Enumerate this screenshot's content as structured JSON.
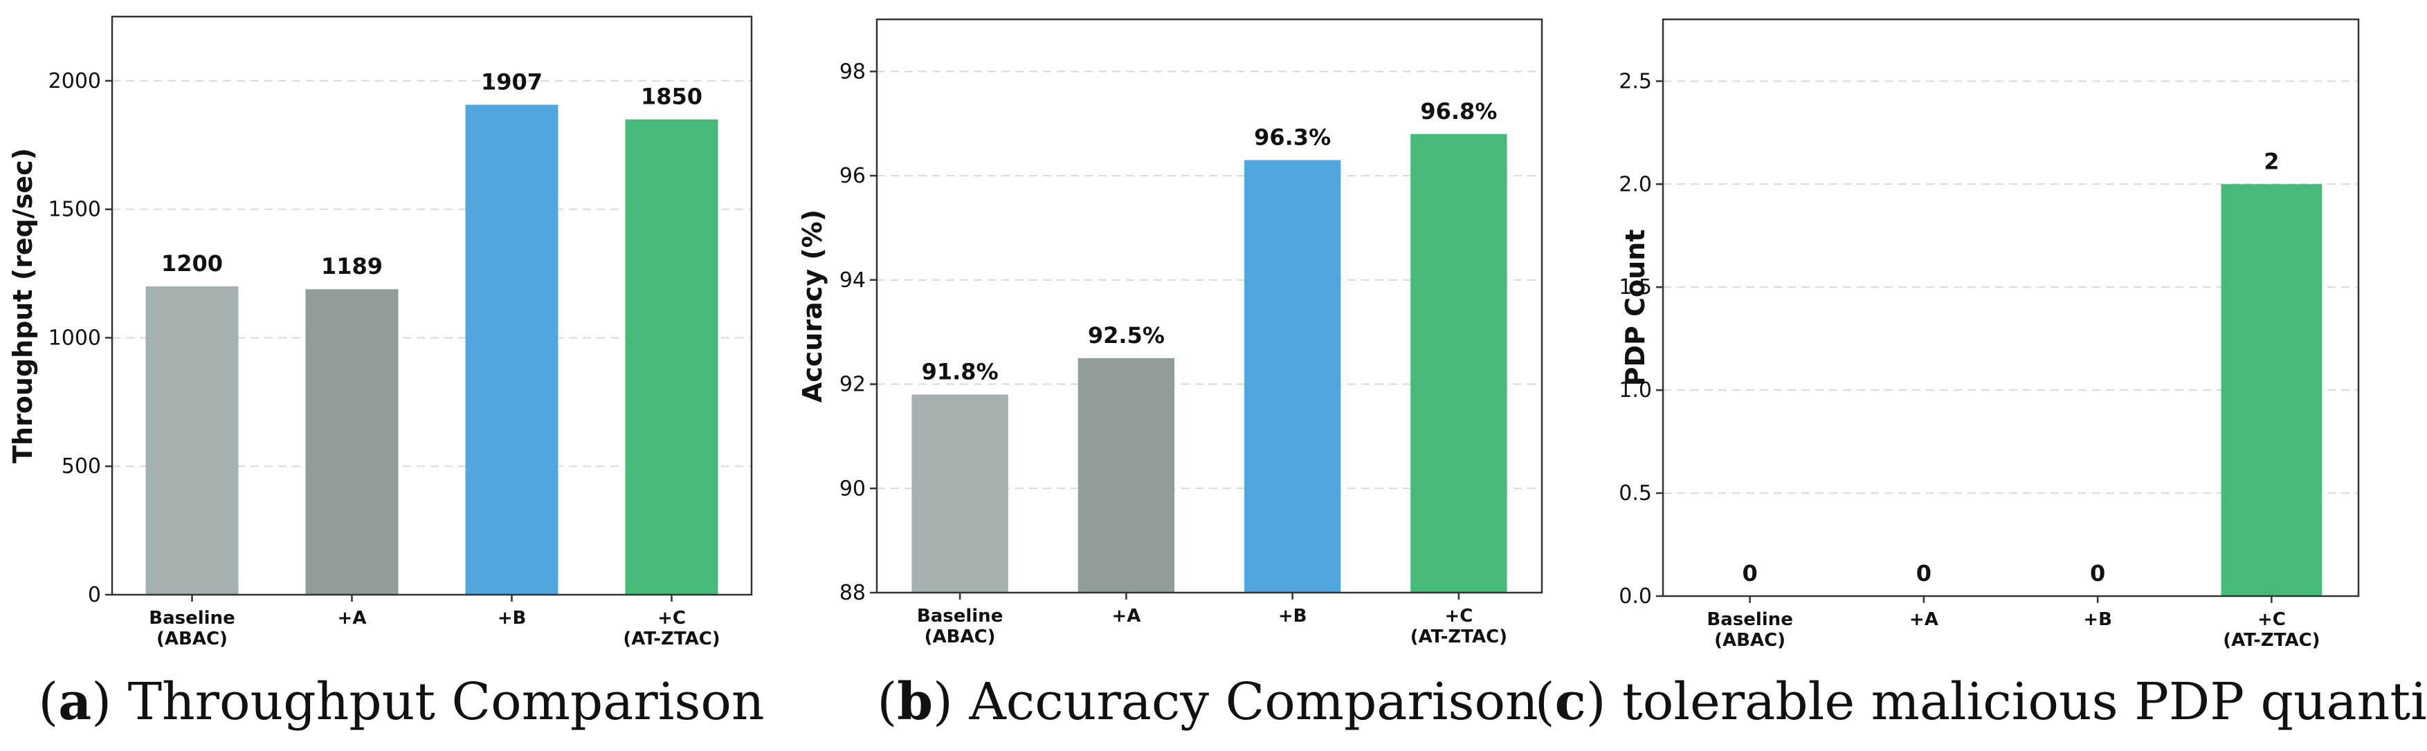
{
  "chart_data": [
    {
      "id": "a",
      "type": "bar",
      "categories": [
        "Baseline\n(ABAC)",
        "+A",
        "+B",
        "+C\n(AT-ZTAC)"
      ],
      "values": [
        1200,
        1189,
        1907,
        1850
      ],
      "value_labels": [
        "1200",
        "1189",
        "1907",
        "1850"
      ],
      "colors": [
        "#a5b1b0",
        "#919d9b",
        "#52a6de",
        "#47ba79"
      ],
      "ylabel": "Throughput (req/sec)",
      "ylim": [
        0,
        2250
      ],
      "yticks": [
        0,
        500,
        1000,
        1500,
        2000
      ],
      "ytick_labels": [
        "0",
        "500",
        "1000",
        "1500",
        "2000"
      ],
      "grid": "y-dashed",
      "caption_letter": "a",
      "caption_text": "Throughput Comparison"
    },
    {
      "id": "b",
      "type": "bar",
      "categories": [
        "Baseline\n(ABAC)",
        "+A",
        "+B",
        "+C\n(AT-ZTAC)"
      ],
      "values": [
        91.8,
        92.5,
        96.3,
        96.8
      ],
      "value_labels": [
        "91.8%",
        "92.5%",
        "96.3%",
        "96.8%"
      ],
      "colors": [
        "#a5b1b0",
        "#919d9b",
        "#52a6de",
        "#47ba79"
      ],
      "ylabel": "Accuracy (%)",
      "ylim": [
        88,
        99
      ],
      "yticks": [
        88,
        90,
        92,
        94,
        96,
        98
      ],
      "ytick_labels": [
        "88",
        "90",
        "92",
        "94",
        "96",
        "98"
      ],
      "grid": "y-dashed",
      "caption_letter": "b",
      "caption_text": "Accuracy Comparison"
    },
    {
      "id": "c",
      "type": "bar",
      "categories": [
        "Baseline\n(ABAC)",
        "+A",
        "+B",
        "+C\n(AT-ZTAC)"
      ],
      "values": [
        0,
        0,
        0,
        2
      ],
      "value_labels": [
        "0",
        "0",
        "0",
        "2"
      ],
      "colors": [
        "#a5b1b0",
        "#919d9b",
        "#52a6de",
        "#47ba79"
      ],
      "ylabel": "PDP Count",
      "ylim": [
        0,
        2.8
      ],
      "yticks": [
        0.0,
        0.5,
        1.0,
        1.5,
        2.0,
        2.5
      ],
      "ytick_labels": [
        "0.0",
        "0.5",
        "1.0",
        "1.5",
        "2.0",
        "2.5"
      ],
      "grid": "y-dashed",
      "caption_letter": "c",
      "caption_text": "tolerable malicious PDP quantity"
    }
  ]
}
